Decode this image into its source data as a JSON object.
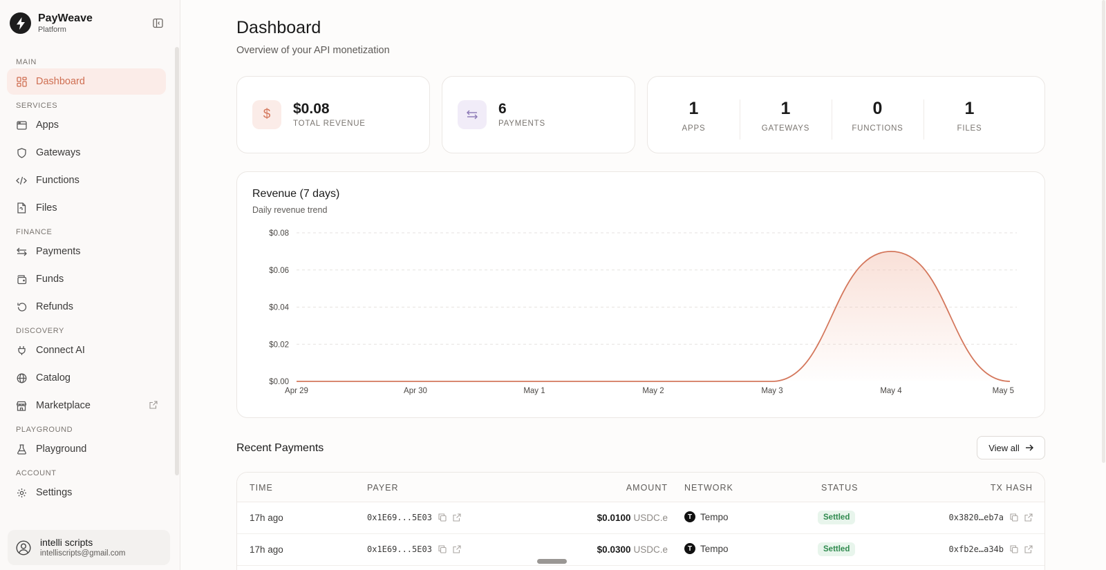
{
  "brand": {
    "name": "PayWeave",
    "sub": "Platform"
  },
  "sidebar": {
    "sections": [
      {
        "label": "MAIN",
        "items": [
          {
            "label": "Dashboard",
            "icon": "dashboard-grid-icon",
            "active": true
          }
        ]
      },
      {
        "label": "SERVICES",
        "items": [
          {
            "label": "Apps",
            "icon": "app-window-icon"
          },
          {
            "label": "Gateways",
            "icon": "shield-icon"
          },
          {
            "label": "Functions",
            "icon": "code-icon"
          },
          {
            "label": "Files",
            "icon": "file-icon"
          }
        ]
      },
      {
        "label": "FINANCE",
        "items": [
          {
            "label": "Payments",
            "icon": "arrows-exchange-icon"
          },
          {
            "label": "Funds",
            "icon": "wallet-icon"
          },
          {
            "label": "Refunds",
            "icon": "refund-icon"
          }
        ]
      },
      {
        "label": "DISCOVERY",
        "items": [
          {
            "label": "Connect AI",
            "icon": "plug-icon"
          },
          {
            "label": "Catalog",
            "icon": "globe-icon"
          },
          {
            "label": "Marketplace",
            "icon": "store-icon",
            "external": true
          }
        ]
      },
      {
        "label": "PLAYGROUND",
        "items": [
          {
            "label": "Playground",
            "icon": "flask-icon"
          }
        ]
      },
      {
        "label": "ACCOUNT",
        "items": [
          {
            "label": "Settings",
            "icon": "gear-icon"
          }
        ]
      }
    ]
  },
  "user": {
    "name": "intelli scripts",
    "email": "intelliscripts@gmail.com"
  },
  "header": {
    "title": "Dashboard",
    "subtitle": "Overview of your API monetization"
  },
  "stats": {
    "revenue": {
      "value": "$0.08",
      "label": "TOTAL REVENUE"
    },
    "payments": {
      "value": "6",
      "label": "PAYMENTS"
    },
    "counts": [
      {
        "value": "1",
        "label": "APPS"
      },
      {
        "value": "1",
        "label": "GATEWAYS"
      },
      {
        "value": "0",
        "label": "FUNCTIONS"
      },
      {
        "value": "1",
        "label": "FILES"
      }
    ]
  },
  "chart": {
    "title": "Revenue (7 days)",
    "subtitle": "Daily revenue trend"
  },
  "chart_data": {
    "type": "area",
    "title": "Revenue (7 days)",
    "subtitle": "Daily revenue trend",
    "categories": [
      "Apr 29",
      "Apr 30",
      "May 1",
      "May 2",
      "May 3",
      "May 4",
      "May 5"
    ],
    "series": [
      {
        "values": [
          0,
          0,
          0,
          0,
          0,
          0.07,
          0
        ]
      }
    ],
    "ylim": [
      0,
      0.08
    ],
    "yticks": [
      "$0.00",
      "$0.02",
      "$0.04",
      "$0.06",
      "$0.08"
    ],
    "grid": true,
    "colors": {
      "line": "#d4775c",
      "fill": "#f4c7b8"
    }
  },
  "recent": {
    "title": "Recent Payments",
    "view_all": "View all",
    "columns": [
      "TIME",
      "PAYER",
      "AMOUNT",
      "NETWORK",
      "STATUS",
      "TX HASH"
    ],
    "rows": [
      {
        "time": "17h ago",
        "payer": "0x1E69...5E03",
        "amount": "$0.0100",
        "currency": "USDC.e",
        "network": "Tempo",
        "status": "Settled",
        "hash": "0x3820…eb7a"
      },
      {
        "time": "17h ago",
        "payer": "0x1E69...5E03",
        "amount": "$0.0300",
        "currency": "USDC.e",
        "network": "Tempo",
        "status": "Settled",
        "hash": "0xfb2e…a34b"
      }
    ]
  },
  "colors": {
    "accent": "#d4775c",
    "active_bg": "#fbece8",
    "settled_bg": "#e8f5ec",
    "settled_text": "#2f8a4e",
    "payments_icon_bg": "#f1ecf8",
    "payments_icon": "#8b78b5"
  }
}
